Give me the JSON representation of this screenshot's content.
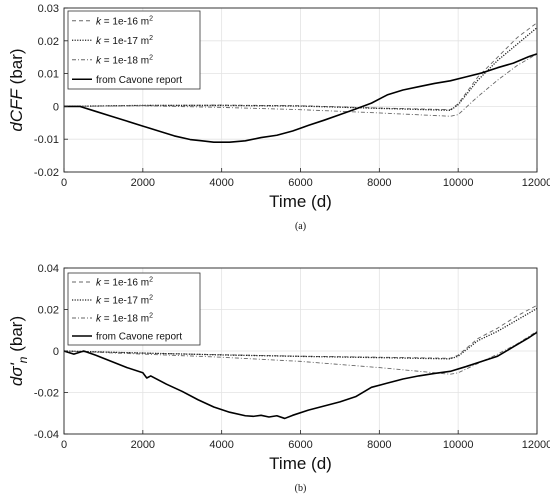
{
  "chart_data": [
    {
      "type": "line",
      "caption": "(a)",
      "ylabel_base": "dCFF",
      "ylabel_unit": " (bar)",
      "xlabel": "Time (d)",
      "xlim": [
        0,
        12000
      ],
      "ylim": [
        -0.02,
        0.03
      ],
      "xticks": [
        0,
        2000,
        4000,
        6000,
        8000,
        10000,
        12000
      ],
      "yticks": [
        -0.02,
        -0.01,
        0,
        0.01,
        0.02,
        0.03
      ],
      "xtick_labels": [
        "0",
        "2000",
        "4000",
        "6000",
        "8000",
        "10000",
        "12000"
      ],
      "ytick_labels": [
        "-0.02",
        "-0.01",
        "0",
        "0.01",
        "0.02",
        "0.03"
      ],
      "grid": true,
      "legend_position": "top-left",
      "series": [
        {
          "name": "k = 1e-16 m2",
          "legend_k": "k",
          "legend_rest": " = 1e-16 m",
          "legend_sup": "2",
          "color": "#666666",
          "dash": "4,3",
          "width": 0.9,
          "x": [
            0,
            2000,
            4000,
            6000,
            8000,
            9800,
            10000,
            10500,
            11000,
            11500,
            12000
          ],
          "y": [
            0,
            0.0003,
            0.0004,
            0.0002,
            -0.0005,
            -0.001,
            0.0008,
            0.009,
            0.015,
            0.021,
            0.0255
          ]
        },
        {
          "name": "k = 1e-17 m2",
          "legend_k": "k",
          "legend_rest": " = 1e-17 m",
          "legend_sup": "2",
          "color": "#222222",
          "dash": "1.2,1.4",
          "width": 1.3,
          "x": [
            0,
            2000,
            4000,
            6000,
            8000,
            9800,
            10000,
            10500,
            11000,
            11500,
            12000
          ],
          "y": [
            0,
            0.0003,
            0.0003,
            0.0001,
            -0.0006,
            -0.0012,
            0.0005,
            0.008,
            0.014,
            0.019,
            0.024
          ]
        },
        {
          "name": "k = 1e-18 m2",
          "legend_k": "k",
          "legend_rest": " = 1e-18 m",
          "legend_sup": "2",
          "color": "#666666",
          "dash": "4,2,1,2",
          "width": 0.9,
          "x": [
            0,
            2000,
            4000,
            6000,
            8000,
            9800,
            10000,
            10500,
            11000,
            11500,
            12000
          ],
          "y": [
            0,
            0.0002,
            -0.0003,
            -0.001,
            -0.002,
            -0.003,
            -0.0025,
            0.003,
            0.008,
            0.0125,
            0.016
          ]
        },
        {
          "name": "from Cavone report",
          "legend_k": "",
          "legend_rest": "from Cavone report",
          "legend_sup": "",
          "color": "#000000",
          "dash": "",
          "width": 1.6,
          "x": [
            0,
            400,
            800,
            1200,
            1600,
            2000,
            2400,
            2800,
            3200,
            3500,
            3800,
            4200,
            4600,
            5000,
            5400,
            5800,
            6200,
            6600,
            7000,
            7400,
            7800,
            8200,
            8600,
            9000,
            9400,
            9800,
            10200,
            10600,
            11000,
            11400,
            11800,
            12000
          ],
          "y": [
            0,
            0,
            -0.0015,
            -0.003,
            -0.0045,
            -0.006,
            -0.0075,
            -0.009,
            -0.0101,
            -0.0105,
            -0.0109,
            -0.0109,
            -0.0105,
            -0.0095,
            -0.0088,
            -0.0075,
            -0.0058,
            -0.0042,
            -0.0025,
            -0.0008,
            0.001,
            0.0035,
            0.005,
            0.006,
            0.007,
            0.0078,
            0.009,
            0.0102,
            0.0118,
            0.0132,
            0.0152,
            0.016
          ]
        }
      ]
    },
    {
      "type": "line",
      "caption": "(b)",
      "ylabel_base": "dσ'",
      "ylabel_sub": "n",
      "ylabel_unit": " (bar)",
      "xlabel": "Time (d)",
      "xlim": [
        0,
        12000
      ],
      "ylim": [
        -0.04,
        0.04
      ],
      "xticks": [
        0,
        2000,
        4000,
        6000,
        8000,
        10000,
        12000
      ],
      "yticks": [
        -0.04,
        -0.02,
        0,
        0.02,
        0.04
      ],
      "xtick_labels": [
        "0",
        "2000",
        "4000",
        "6000",
        "8000",
        "10000",
        "12000"
      ],
      "ytick_labels": [
        "-0.04",
        "-0.02",
        "0",
        "0.02",
        "0.04"
      ],
      "grid": true,
      "legend_position": "top-left",
      "series": [
        {
          "name": "k = 1e-16 m2",
          "legend_k": "k",
          "legend_rest": " = 1e-16 m",
          "legend_sup": "2",
          "color": "#666666",
          "dash": "4,3",
          "width": 0.9,
          "x": [
            0,
            2000,
            4000,
            6000,
            8000,
            9800,
            10000,
            10500,
            11000,
            11500,
            12000
          ],
          "y": [
            0,
            -0.001,
            -0.0018,
            -0.0025,
            -0.003,
            -0.0035,
            -0.002,
            0.006,
            0.011,
            0.017,
            0.022
          ]
        },
        {
          "name": "k = 1e-17 m2",
          "legend_k": "k",
          "legend_rest": " = 1e-17 m",
          "legend_sup": "2",
          "color": "#222222",
          "dash": "1.2,1.4",
          "width": 1.3,
          "x": [
            0,
            2000,
            4000,
            6000,
            8000,
            9800,
            10000,
            10500,
            11000,
            11500,
            12000
          ],
          "y": [
            0,
            -0.001,
            -0.0019,
            -0.0026,
            -0.0032,
            -0.0038,
            -0.0025,
            0.005,
            0.0095,
            0.015,
            0.0205
          ]
        },
        {
          "name": "k = 1e-18 m2",
          "legend_k": "k",
          "legend_rest": " = 1e-18 m",
          "legend_sup": "2",
          "color": "#666666",
          "dash": "4,2,1,2",
          "width": 0.9,
          "x": [
            0,
            2000,
            4000,
            6000,
            8000,
            9800,
            10000,
            10500,
            11000,
            11500,
            12000
          ],
          "y": [
            0,
            -0.0015,
            -0.003,
            -0.005,
            -0.008,
            -0.0112,
            -0.0105,
            -0.006,
            -0.0015,
            0.0035,
            0.0095
          ]
        },
        {
          "name": "from Cavone report",
          "legend_k": "",
          "legend_rest": "from Cavone report",
          "legend_sup": "",
          "color": "#000000",
          "dash": "",
          "width": 1.6,
          "x": [
            0,
            250,
            500,
            800,
            1200,
            1600,
            2000,
            2100,
            2200,
            2600,
            3000,
            3400,
            3800,
            4200,
            4600,
            4800,
            5000,
            5200,
            5400,
            5600,
            5800,
            6200,
            6600,
            7000,
            7400,
            7800,
            8200,
            8600,
            9000,
            9400,
            9800,
            10200,
            10600,
            11000,
            11400,
            11800,
            12000
          ],
          "y": [
            0,
            -0.0015,
            0,
            -0.002,
            -0.005,
            -0.008,
            -0.0105,
            -0.013,
            -0.012,
            -0.016,
            -0.0195,
            -0.0235,
            -0.027,
            -0.0295,
            -0.0312,
            -0.0315,
            -0.031,
            -0.0318,
            -0.0312,
            -0.0325,
            -0.031,
            -0.0285,
            -0.0265,
            -0.0245,
            -0.022,
            -0.0175,
            -0.0155,
            -0.0135,
            -0.012,
            -0.0108,
            -0.0098,
            -0.0075,
            -0.005,
            -0.0025,
            0.002,
            0.0065,
            0.009
          ]
        }
      ]
    }
  ]
}
